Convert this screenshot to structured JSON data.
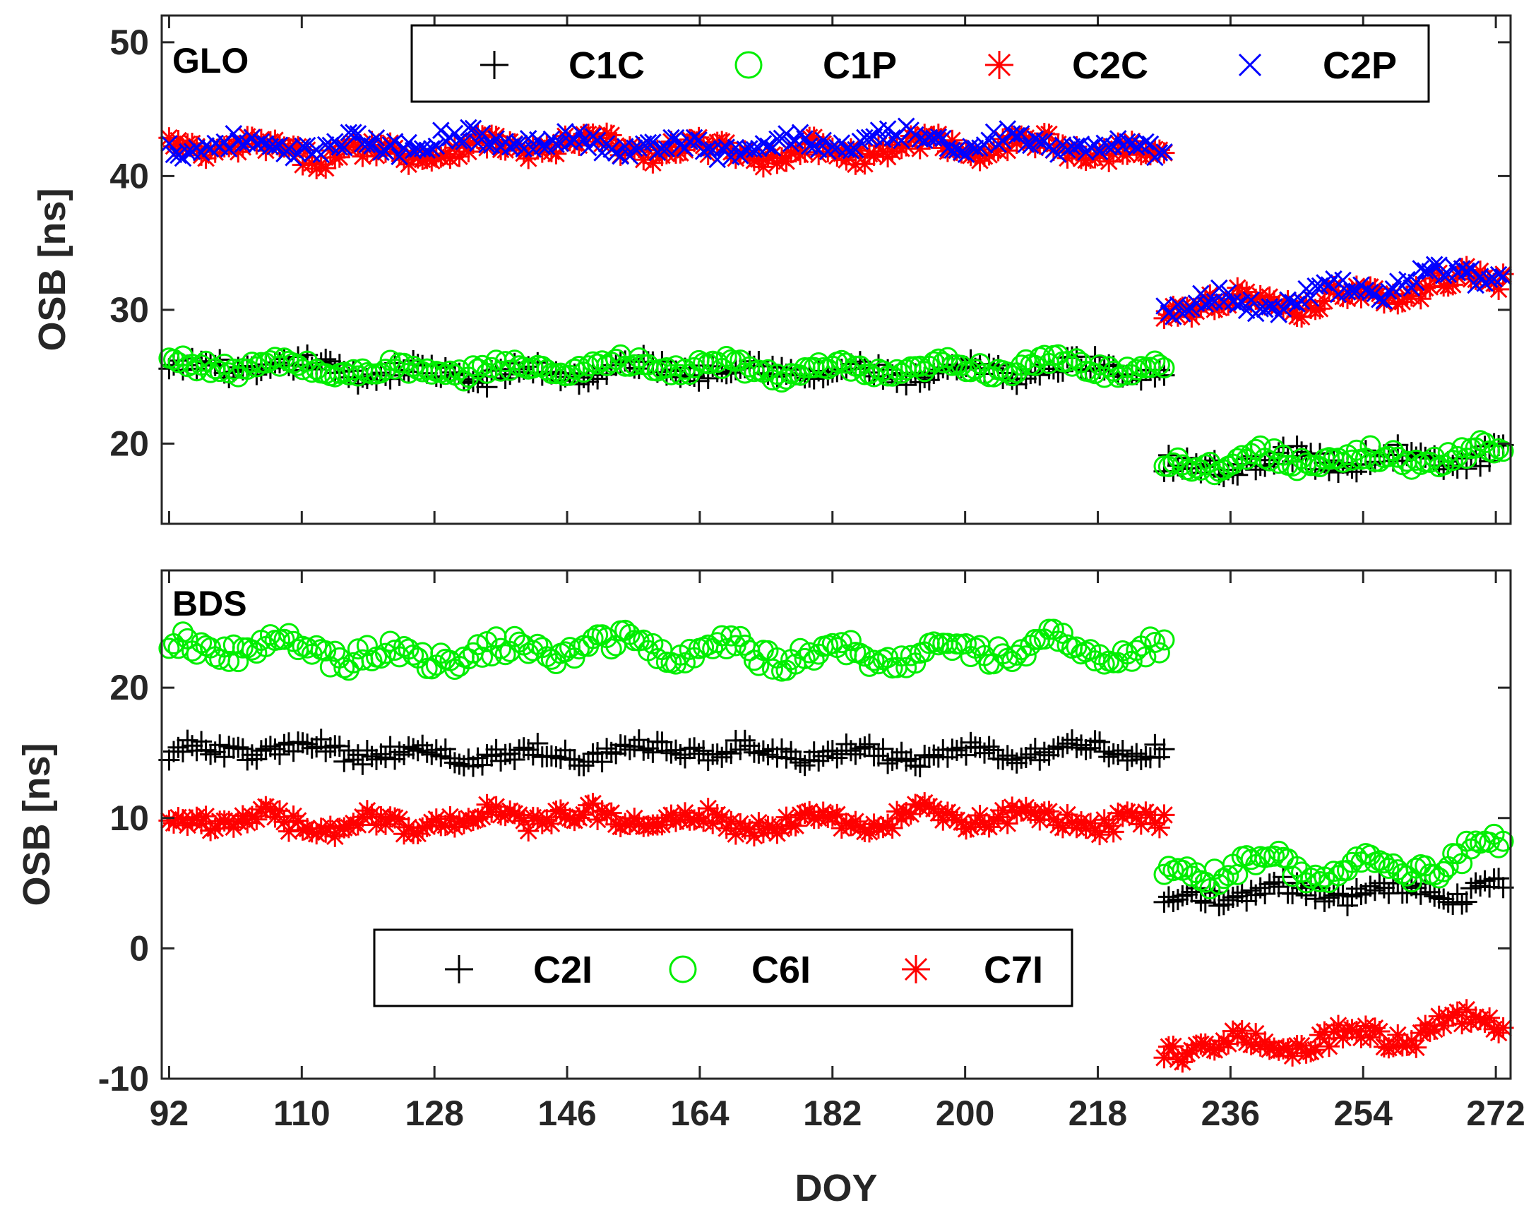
{
  "colors": {
    "C1C": "#000000",
    "C1P": "#00ee00",
    "C2C": "#ff0000",
    "C2P": "#0000ff",
    "C2I": "#000000",
    "C6I": "#00ee00",
    "C7I": "#ff0000"
  },
  "chart_data": [
    {
      "type": "scatter",
      "panel_label": "GLO",
      "xlabel": "",
      "ylabel": "OSB [ns]",
      "xlim": [
        91,
        274
      ],
      "ylim": [
        14,
        52
      ],
      "xticks": [
        92,
        110,
        128,
        146,
        164,
        182,
        200,
        218,
        236,
        254,
        272
      ],
      "yticks": [
        20,
        30,
        40,
        50
      ],
      "grid": false,
      "legend_position": "top",
      "series": [
        {
          "name": "C1C",
          "marker": "plus",
          "segments": [
            {
              "x_start": 92,
              "x_end": 227,
              "level": 25.4,
              "amp": 0.45,
              "scatter": 0.6
            },
            {
              "x_start": 227,
              "x_end": 273,
              "level": 18.0,
              "end_level": 19.3,
              "amp": 0.5,
              "scatter": 0.7
            }
          ]
        },
        {
          "name": "C1P",
          "marker": "circle",
          "segments": [
            {
              "x_start": 92,
              "x_end": 227,
              "level": 25.6,
              "amp": 0.4,
              "scatter": 0.5
            },
            {
              "x_start": 227,
              "x_end": 273,
              "level": 18.2,
              "end_level": 19.5,
              "amp": 0.5,
              "scatter": 0.6
            }
          ]
        },
        {
          "name": "C2C",
          "marker": "asterisk",
          "segments": [
            {
              "x_start": 92,
              "x_end": 227,
              "level": 42.0,
              "amp": 0.5,
              "scatter": 0.7
            },
            {
              "x_start": 227,
              "x_end": 273,
              "level": 30.0,
              "end_level": 32.3,
              "amp": 0.6,
              "scatter": 0.7
            }
          ]
        },
        {
          "name": "C2P",
          "marker": "cross",
          "segments": [
            {
              "x_start": 92,
              "x_end": 227,
              "level": 42.4,
              "amp": 0.5,
              "scatter": 0.6
            },
            {
              "x_start": 227,
              "x_end": 273,
              "level": 30.3,
              "end_level": 32.6,
              "amp": 0.6,
              "scatter": 0.6
            }
          ]
        }
      ]
    },
    {
      "type": "scatter",
      "panel_label": "BDS",
      "xlabel": "DOY",
      "ylabel": "OSB [ns]",
      "xlim": [
        91,
        274
      ],
      "ylim": [
        -10,
        29
      ],
      "xticks": [
        92,
        110,
        128,
        146,
        164,
        182,
        200,
        218,
        236,
        254,
        272
      ],
      "yticks": [
        -10,
        0,
        10,
        20
      ],
      "grid": false,
      "legend_position": "lower-center",
      "series": [
        {
          "name": "C2I",
          "marker": "plus",
          "segments": [
            {
              "x_start": 92,
              "x_end": 227,
              "level": 15.0,
              "amp": 0.4,
              "scatter": 0.6
            },
            {
              "x_start": 227,
              "x_end": 273,
              "level": 3.6,
              "end_level": 4.9,
              "amp": 0.5,
              "scatter": 0.7
            }
          ]
        },
        {
          "name": "C6I",
          "marker": "circle",
          "segments": [
            {
              "x_start": 92,
              "x_end": 227,
              "level": 22.8,
              "amp": 0.6,
              "scatter": 0.8
            },
            {
              "x_start": 227,
              "x_end": 273,
              "level": 5.2,
              "end_level": 7.6,
              "amp": 0.9,
              "scatter": 0.8
            }
          ]
        },
        {
          "name": "C7I",
          "marker": "asterisk",
          "segments": [
            {
              "x_start": 92,
              "x_end": 227,
              "level": 9.8,
              "amp": 0.5,
              "scatter": 0.7
            },
            {
              "x_start": 227,
              "x_end": 273,
              "level": -7.8,
              "end_level": -5.6,
              "amp": 0.7,
              "scatter": 0.7
            }
          ]
        }
      ]
    }
  ]
}
